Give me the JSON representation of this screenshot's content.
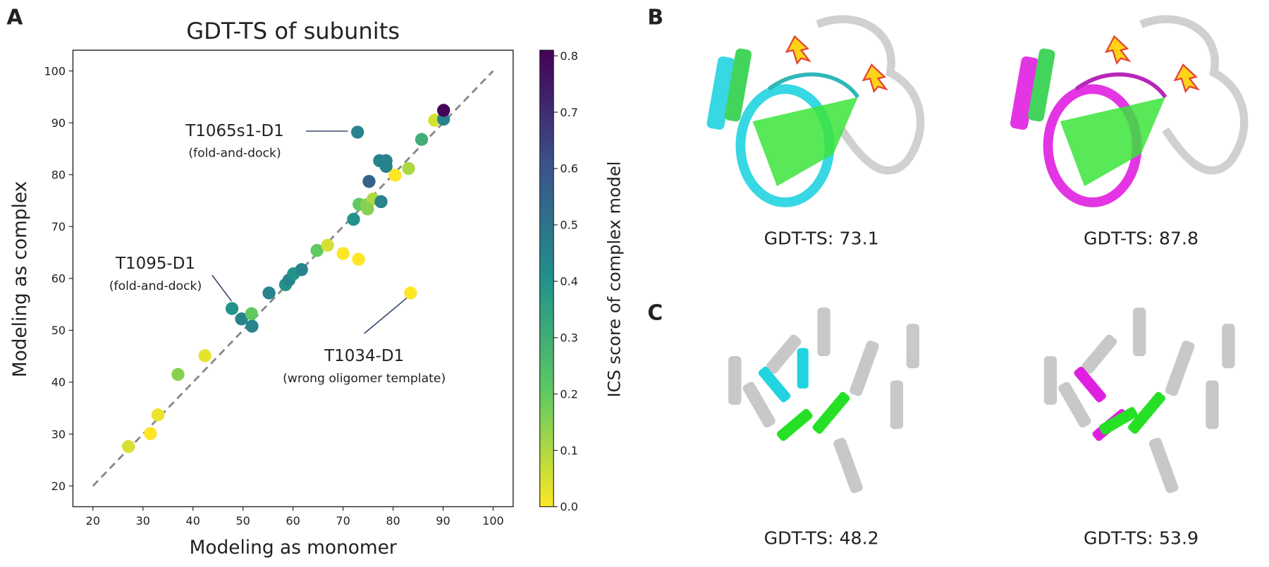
{
  "chart_data": {
    "type": "scatter",
    "title": "GDT-TS of subunits",
    "x_label": "Modeling as monomer",
    "y_label": "Modeling as complex",
    "x": [
      27.1,
      31.5,
      33.0,
      37.0,
      42.4,
      47.8,
      49.7,
      51.8,
      51.7,
      55.2,
      58.5,
      59.2,
      60.1,
      61.7,
      64.8,
      66.9,
      70.0,
      73.1,
      72.1,
      73.2,
      74.7,
      76.0,
      74.9,
      77.6,
      75.2,
      77.3,
      78.6,
      78.6,
      80.4,
      83.1,
      83.5,
      72.9,
      85.7,
      88.3,
      90.1,
      90.1
    ],
    "y": [
      27.6,
      30.1,
      33.7,
      41.5,
      45.1,
      54.2,
      52.2,
      50.8,
      53.2,
      57.2,
      58.8,
      59.7,
      60.9,
      61.7,
      65.4,
      66.4,
      64.8,
      63.7,
      71.4,
      74.3,
      74.2,
      75.3,
      73.4,
      74.8,
      78.7,
      82.7,
      82.7,
      81.6,
      79.9,
      81.2,
      57.2,
      88.2,
      86.8,
      90.5,
      90.7,
      92.4
    ],
    "c": [
      0.05,
      0.0,
      0.02,
      0.15,
      0.03,
      0.4,
      0.45,
      0.45,
      0.2,
      0.45,
      0.4,
      0.45,
      0.4,
      0.45,
      0.2,
      0.05,
      0.0,
      0.0,
      0.4,
      0.2,
      0.15,
      0.1,
      0.15,
      0.45,
      0.55,
      0.45,
      0.45,
      0.45,
      0.0,
      0.1,
      0.0,
      0.45,
      0.3,
      0.05,
      0.45,
      0.8
    ],
    "colormap": [
      "#fde725",
      "#5ec962",
      "#21918c",
      "#3b528b",
      "#440154"
    ],
    "xlim": [
      16,
      104
    ],
    "ylim": [
      16,
      104
    ],
    "xticks": [
      20,
      30,
      40,
      50,
      60,
      70,
      80,
      90,
      100
    ],
    "yticks": [
      20,
      30,
      40,
      50,
      60,
      70,
      80,
      90,
      100
    ],
    "diagonal": {
      "x": [
        20,
        100
      ],
      "y": [
        20,
        100
      ]
    },
    "colorbar": {
      "label": "ICS score of complex model",
      "lim": [
        0,
        0.81
      ],
      "ticks": [
        {
          "value": 0,
          "label": "0.0"
        },
        0.1,
        0.2,
        0.3,
        0.4,
        0.5,
        0.6,
        0.7,
        0.8
      ]
    },
    "annotations": [
      {
        "text": "T1065s1-D1",
        "note": "(fold-and-dock)"
      },
      {
        "text": "T1095-D1",
        "note": "(fold-and-dock)"
      },
      {
        "text": "T1034-D1",
        "note": "(wrong oligomer template)"
      }
    ]
  },
  "panels": {
    "labels": [
      "A",
      "B",
      "C"
    ],
    "captions": [
      "GDT-TS: 73.1",
      "GDT-TS: 87.8",
      "GDT-TS: 48.2",
      "GDT-TS: 53.9"
    ]
  }
}
